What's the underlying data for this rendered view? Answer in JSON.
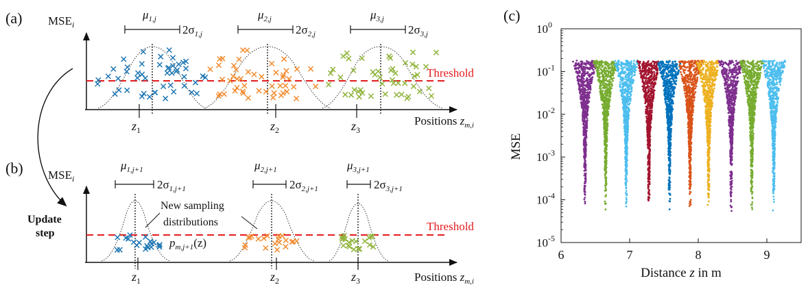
{
  "colors": {
    "blue": "#1f77b4",
    "orange": "#f28b30",
    "green": "#8fb33a",
    "threshold": "#e41a1c",
    "text": "#111111",
    "scatter_colors": [
      "#7e2f8e",
      "#77ac30",
      "#4dbeee",
      "#a2142f",
      "#0072bd",
      "#d95319",
      "#edb120",
      "#7e2f8e",
      "#77ac30",
      "#4dbeee"
    ]
  },
  "panel_a": {
    "tag": "(a)",
    "ylabel_main": "MSE",
    "ylabel_sub": "i",
    "threshold": "Threshold",
    "xlabel_main": "Positions ",
    "xlabel_var": "z",
    "xlabel_sub": "m,i",
    "groups": [
      {
        "mu": "μ",
        "mu_sub": "1,j",
        "sigma": "2σ",
        "sigma_sub": "1,j",
        "z": "z",
        "z_sub": "1"
      },
      {
        "mu": "μ",
        "mu_sub": "2,j",
        "sigma": "2σ",
        "sigma_sub": "2,j",
        "z": "z",
        "z_sub": "2"
      },
      {
        "mu": "μ",
        "mu_sub": "3,j",
        "sigma": "2σ",
        "sigma_sub": "3,j",
        "z": "z",
        "z_sub": "3"
      }
    ]
  },
  "panel_b": {
    "tag": "(b)",
    "ylabel_main": "MSE",
    "ylabel_sub": "i",
    "threshold": "Threshold",
    "xlabel_main": "Positions ",
    "xlabel_var": "z",
    "xlabel_sub": "m,i",
    "update_line1": "Update",
    "update_line2": "step",
    "new_sampling_line1": "New sampling",
    "new_sampling_line2": "distributions",
    "p_label": "p",
    "p_sub": "m,j+1",
    "p_arg": "(z)",
    "groups": [
      {
        "mu": "μ",
        "mu_sub": "1,j+1",
        "sigma": "2σ",
        "sigma_sub": "1,j+1",
        "z": "z",
        "z_sub": "1"
      },
      {
        "mu": "μ",
        "mu_sub": "2,j+1",
        "sigma": "2σ",
        "sigma_sub": "2,j+1",
        "z": "z",
        "z_sub": "2"
      },
      {
        "mu": "μ",
        "mu_sub": "3,j+1",
        "sigma": "2σ",
        "sigma_sub": "3,j+1",
        "z": "z",
        "z_sub": "3"
      }
    ]
  },
  "chart_data": {
    "tag": "(c)",
    "type": "scatter",
    "xlabel_pre": "Distance ",
    "xlabel_var": "z",
    "xlabel_post": " in m",
    "ylabel": "MSE",
    "xlim": [
      6,
      9.5
    ],
    "ylim": [
      1e-05,
      1
    ],
    "yscale": "log",
    "xticks": [
      "6",
      "7",
      "8",
      "9"
    ],
    "yticks": [
      {
        "base": "10",
        "exp": "0"
      },
      {
        "base": "10",
        "exp": "-1"
      },
      {
        "base": "10",
        "exp": "-2"
      },
      {
        "base": "10",
        "exp": "-3"
      },
      {
        "base": "10",
        "exp": "-4"
      },
      {
        "base": "10",
        "exp": "-5"
      }
    ],
    "clusters": [
      {
        "center": 6.35,
        "min_mse": 5e-05,
        "max_mse": 0.18
      },
      {
        "center": 6.65,
        "min_mse": 5e-05,
        "max_mse": 0.18
      },
      {
        "center": 6.95,
        "min_mse": 5e-05,
        "max_mse": 0.18
      },
      {
        "center": 7.28,
        "min_mse": 5e-05,
        "max_mse": 0.18
      },
      {
        "center": 7.58,
        "min_mse": 5e-05,
        "max_mse": 0.18
      },
      {
        "center": 7.88,
        "min_mse": 5e-05,
        "max_mse": 0.18
      },
      {
        "center": 8.15,
        "min_mse": 5e-05,
        "max_mse": 0.18
      },
      {
        "center": 8.48,
        "min_mse": 5e-05,
        "max_mse": 0.18
      },
      {
        "center": 8.78,
        "min_mse": 5e-05,
        "max_mse": 0.18
      },
      {
        "center": 9.1,
        "min_mse": 5e-05,
        "max_mse": 0.18
      }
    ]
  }
}
